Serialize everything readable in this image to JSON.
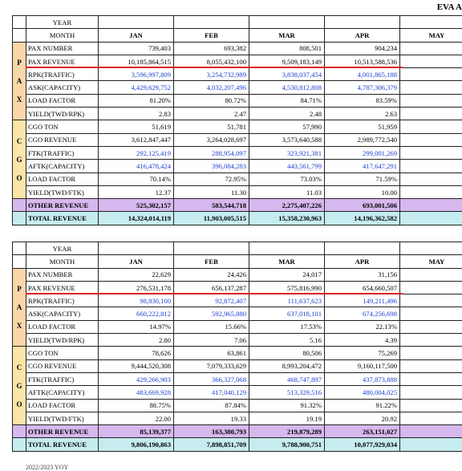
{
  "title": "EVA A",
  "headers": {
    "year": "YEAR",
    "month": "MONTH",
    "months": [
      "JAN",
      "FEB",
      "MAR",
      "APR",
      "MAY"
    ]
  },
  "side": {
    "pax": [
      "P",
      "A",
      "X"
    ],
    "cgo": [
      "C",
      "G",
      "O"
    ]
  },
  "tables": [
    {
      "rows": [
        {
          "label": "PAX NUMBER",
          "vals": [
            "739,403",
            "693,382",
            "808,501",
            "904,234",
            ""
          ],
          "blue": false
        },
        {
          "label": "PAX REVENUE",
          "vals": [
            "10,185,864,515",
            "8,055,432,100",
            "9,509,183,149",
            "10,513,588,536",
            ""
          ],
          "blue": false
        },
        {
          "label": "RPK(TRAFFIC)",
          "vals": [
            "3,596,997,809",
            "3,254,732,989",
            "3,838,037,454",
            "4,001,865,188",
            ""
          ],
          "blue": true
        },
        {
          "label": "ASK(CAPACITY)",
          "vals": [
            "4,429,629,752",
            "4,032,207,496",
            "4,530,812,808",
            "4,787,306,379",
            ""
          ],
          "blue": true
        },
        {
          "label": "LOAD FACTOR",
          "vals": [
            "81.20%",
            "80.72%",
            "84.71%",
            "83.59%",
            ""
          ],
          "blue": false
        },
        {
          "label": "YIELD(TWD/RPK)",
          "vals": [
            "2.83",
            "2.47",
            "2.48",
            "2.63",
            ""
          ],
          "blue": false
        },
        {
          "label": "CGO TON",
          "vals": [
            "51,619",
            "51,781",
            "57,990",
            "51,959",
            ""
          ],
          "blue": false
        },
        {
          "label": "CGO REVENUE",
          "vals": [
            "3,612,847,447",
            "3,264,028,697",
            "3,573,640,588",
            "2,989,772,540",
            ""
          ],
          "blue": false
        },
        {
          "label": "FTK(TRAFFIC)",
          "vals": [
            "292,125,419",
            "288,954,097",
            "323,921,381",
            "299,001,269",
            ""
          ],
          "blue": true
        },
        {
          "label": "AFTK(CAPACITY)",
          "vals": [
            "416,478,424",
            "396,084,283",
            "443,561,799",
            "417,647,291",
            ""
          ],
          "blue": true
        },
        {
          "label": "LOAD FACTOR",
          "vals": [
            "70.14%",
            "72.95%",
            "73.03%",
            "71.59%",
            ""
          ],
          "blue": false
        },
        {
          "label": "YIELD(TWD/FTK)",
          "vals": [
            "12.37",
            "11.30",
            "11.03",
            "10.00",
            ""
          ],
          "blue": false
        }
      ],
      "other": {
        "label": "OTHER REVENUE",
        "vals": [
          "525,302,157",
          "583,544,718",
          "2,275,407,226",
          "693,001,506",
          ""
        ]
      },
      "total": {
        "label": "TOTAL REVENUE",
        "vals": [
          "14,324,014,119",
          "11,903,005,515",
          "15,358,230,963",
          "14,196,362,582",
          ""
        ]
      }
    },
    {
      "rows": [
        {
          "label": "PAX NUMBER",
          "vals": [
            "22,629",
            "24,426",
            "24,017",
            "31,156",
            ""
          ],
          "blue": false
        },
        {
          "label": "PAX REVENUE",
          "vals": [
            "276,531,178",
            "656,137,287",
            "575,816,990",
            "654,660,507",
            ""
          ],
          "blue": false
        },
        {
          "label": "RPK(TRAFFIC)",
          "vals": [
            "98,830,100",
            "92,872,407",
            "111,637,623",
            "149,211,496",
            ""
          ],
          "blue": true
        },
        {
          "label": "ASK(CAPACITY)",
          "vals": [
            "660,222,812",
            "592,965,880",
            "637,018,101",
            "674,256,698",
            ""
          ],
          "blue": true
        },
        {
          "label": "LOAD FACTOR",
          "vals": [
            "14.97%",
            "15.66%",
            "17.53%",
            "22.13%",
            ""
          ],
          "blue": false
        },
        {
          "label": "YIELD(TWD/RPK)",
          "vals": [
            "2.80",
            "7.06",
            "5.16",
            "4.39",
            ""
          ],
          "blue": false
        },
        {
          "label": "CGO TON",
          "vals": [
            "78,626",
            "63,861",
            "80,506",
            "75,269",
            ""
          ],
          "blue": false
        },
        {
          "label": "CGO REVENUE",
          "vals": [
            "9,444,520,308",
            "7,079,333,629",
            "8,993,204,472",
            "9,160,117,500",
            ""
          ],
          "blue": false
        },
        {
          "label": "FTK(TRAFFIC)",
          "vals": [
            "429,266,903",
            "366,327,068",
            "468,747,897",
            "437,873,888",
            ""
          ],
          "blue": true
        },
        {
          "label": "AFTK(CAPACITY)",
          "vals": [
            "483,669,928",
            "417,040,129",
            "513,329,516",
            "480,004,025",
            ""
          ],
          "blue": true
        },
        {
          "label": "LOAD FACTOR",
          "vals": [
            "88.75%",
            "87.84%",
            "91.32%",
            "91.22%",
            ""
          ],
          "blue": false
        },
        {
          "label": "YIELD(TWD/FTK)",
          "vals": [
            "22.00",
            "19.33",
            "19.19",
            "20.92",
            ""
          ],
          "blue": false
        }
      ],
      "other": {
        "label": "OTHER REVENUE",
        "vals": [
          "85,139,377",
          "163,380,793",
          "219,879,289",
          "263,151,027",
          ""
        ]
      },
      "total": {
        "label": "TOTAL REVENUE",
        "vals": [
          "9,806,190,863",
          "7,898,851,709",
          "9,788,900,751",
          "10,077,929,034",
          ""
        ]
      }
    }
  ],
  "footer": "2022/2023 YOY"
}
